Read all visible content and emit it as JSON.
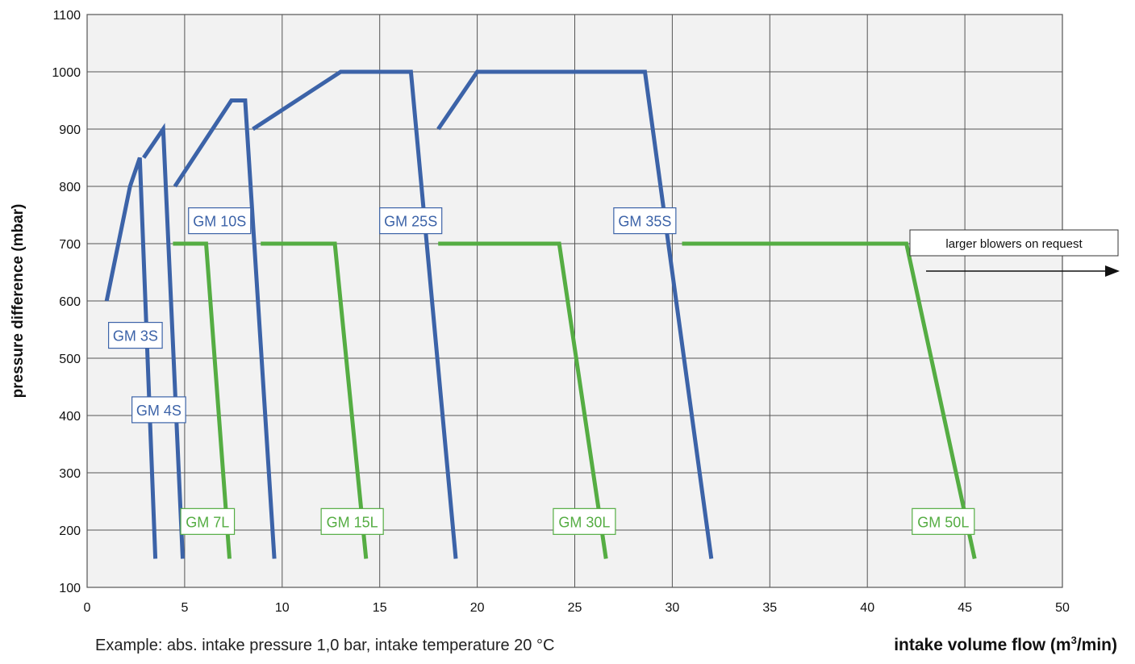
{
  "chart_data": {
    "type": "line",
    "xlabel_main": "intake volume flow (m",
    "xlabel_sup": "3",
    "xlabel_tail": "/min)",
    "ylabel": "pressure difference (mbar)",
    "xlim": [
      0,
      50
    ],
    "ylim": [
      100,
      1100
    ],
    "xticks": [
      "0",
      "5",
      "10",
      "15",
      "20",
      "25",
      "30",
      "35",
      "40",
      "45",
      "50"
    ],
    "yticks": [
      "100",
      "200",
      "300",
      "400",
      "500",
      "600",
      "700",
      "800",
      "900",
      "1000",
      "1100"
    ],
    "grid": true,
    "note": "Example: abs. intake pressure 1,0 bar, intake temperature 20 °C",
    "arrow_label": "larger blowers on request",
    "colors": {
      "S": "#3c63a8",
      "L": "#55ad43",
      "plot_bg": "#f2f2f2",
      "grid": "#555555"
    },
    "series": [
      {
        "name": "GM 3S",
        "group": "S",
        "points": [
          [
            1.0,
            600
          ],
          [
            2.2,
            800
          ],
          [
            2.7,
            850
          ],
          [
            3.5,
            150
          ]
        ]
      },
      {
        "name": "GM 4S",
        "group": "S",
        "points": [
          [
            2.9,
            850
          ],
          [
            3.9,
            900
          ],
          [
            4.9,
            150
          ]
        ]
      },
      {
        "name": "GM 10S",
        "group": "S",
        "points": [
          [
            4.5,
            800
          ],
          [
            7.4,
            950
          ],
          [
            8.1,
            950
          ],
          [
            9.6,
            150
          ]
        ]
      },
      {
        "name": "GM 25S",
        "group": "S",
        "points": [
          [
            8.5,
            900
          ],
          [
            13.0,
            1000
          ],
          [
            16.6,
            1000
          ],
          [
            18.9,
            150
          ]
        ]
      },
      {
        "name": "GM 35S",
        "group": "S",
        "points": [
          [
            18.0,
            900
          ],
          [
            20.0,
            1000
          ],
          [
            28.6,
            1000
          ],
          [
            32.0,
            150
          ]
        ]
      },
      {
        "name": "GM 7L",
        "group": "L",
        "points": [
          [
            4.4,
            700
          ],
          [
            6.1,
            700
          ],
          [
            7.3,
            150
          ]
        ]
      },
      {
        "name": "GM 15L",
        "group": "L",
        "points": [
          [
            8.9,
            700
          ],
          [
            12.7,
            700
          ],
          [
            14.3,
            150
          ]
        ]
      },
      {
        "name": "GM 30L",
        "group": "L",
        "points": [
          [
            18.0,
            700
          ],
          [
            24.2,
            700
          ],
          [
            26.6,
            150
          ]
        ]
      },
      {
        "name": "GM 50L",
        "group": "L",
        "points": [
          [
            30.5,
            700
          ],
          [
            42.0,
            700
          ],
          [
            45.5,
            150
          ]
        ]
      }
    ],
    "labels": [
      {
        "text": "GM 3S",
        "group": "S",
        "x": 1.1,
        "y": 540
      },
      {
        "text": "GM 4S",
        "group": "S",
        "x": 2.3,
        "y": 410
      },
      {
        "text": "GM 10S",
        "group": "S",
        "x": 5.2,
        "y": 740
      },
      {
        "text": "GM 25S",
        "group": "S",
        "x": 15.0,
        "y": 740
      },
      {
        "text": "GM 35S",
        "group": "S",
        "x": 27.0,
        "y": 740
      },
      {
        "text": "GM 7L",
        "group": "L",
        "x": 4.8,
        "y": 215
      },
      {
        "text": "GM 15L",
        "group": "L",
        "x": 12.0,
        "y": 215
      },
      {
        "text": "GM 30L",
        "group": "L",
        "x": 23.9,
        "y": 215
      },
      {
        "text": "GM 50L",
        "group": "L",
        "x": 42.3,
        "y": 215
      }
    ]
  }
}
